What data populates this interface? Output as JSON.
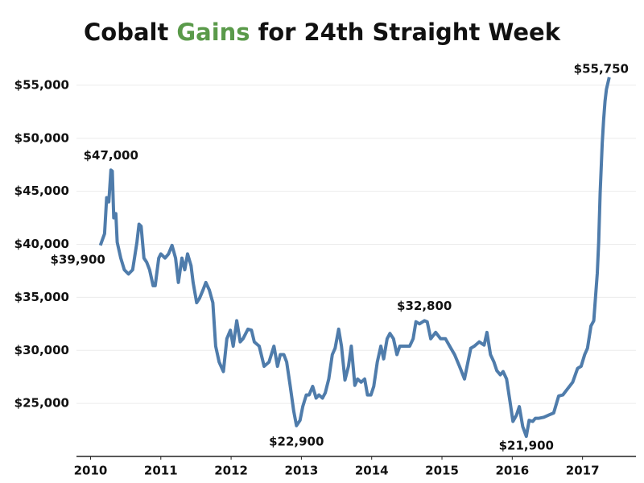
{
  "chart_data": {
    "type": "line",
    "title": [
      "Cobalt",
      "Gains",
      "for 24th Straight Week"
    ],
    "x": [
      2010.14,
      2010.2,
      2010.23,
      2010.26,
      2010.29,
      2010.31,
      2010.33,
      2010.36,
      2010.38,
      2010.43,
      2010.48,
      2010.54,
      2010.6,
      2010.66,
      2010.69,
      2010.72,
      2010.76,
      2010.8,
      2010.84,
      2010.89,
      2010.92,
      2010.97,
      2011.0,
      2011.06,
      2011.11,
      2011.16,
      2011.21,
      2011.25,
      2011.3,
      2011.34,
      2011.38,
      2011.43,
      2011.46,
      2011.51,
      2011.55,
      2011.6,
      2011.64,
      2011.69,
      2011.74,
      2011.78,
      2011.83,
      2011.89,
      2011.94,
      2011.99,
      2012.03,
      2012.08,
      2012.13,
      2012.17,
      2012.24,
      2012.29,
      2012.33,
      2012.4,
      2012.47,
      2012.54,
      2012.61,
      2012.66,
      2012.7,
      2012.75,
      2012.79,
      2012.84,
      2012.89,
      2012.93,
      2012.98,
      2013.02,
      2013.07,
      2013.11,
      2013.16,
      2013.21,
      2013.25,
      2013.3,
      2013.34,
      2013.39,
      2013.44,
      2013.48,
      2013.53,
      2013.57,
      2013.62,
      2013.67,
      2013.71,
      2013.76,
      2013.8,
      2013.85,
      2013.9,
      2013.94,
      2013.99,
      2014.03,
      2014.08,
      2014.13,
      2014.17,
      2014.22,
      2014.26,
      2014.31,
      2014.36,
      2014.4,
      2014.47,
      2014.54,
      2014.59,
      2014.63,
      2014.68,
      2014.75,
      2014.79,
      2014.84,
      2014.91,
      2014.98,
      2015.05,
      2015.11,
      2015.18,
      2015.25,
      2015.32,
      2015.37,
      2015.41,
      2015.46,
      2015.53,
      2015.6,
      2015.64,
      2015.69,
      2015.74,
      2015.78,
      2015.83,
      2015.87,
      2015.92,
      2015.97,
      2016.01,
      2016.06,
      2016.1,
      2016.15,
      2016.2,
      2016.24,
      2016.29,
      2016.33,
      2016.38,
      2016.45,
      2016.52,
      2016.59,
      2016.66,
      2016.72,
      2016.79,
      2016.86,
      2016.93,
      2016.98,
      2017.03,
      2017.07,
      2017.12,
      2017.16,
      2017.21,
      2017.23,
      2017.25,
      2017.28,
      2017.3,
      2017.32,
      2017.34,
      2017.38
    ],
    "series": [
      {
        "color": "#4f7cab",
        "values": [
          39900,
          41000,
          44400,
          44000,
          47000,
          46900,
          42500,
          42900,
          40200,
          38700,
          37600,
          37200,
          37600,
          40200,
          41900,
          41700,
          38700,
          38300,
          37600,
          36100,
          36100,
          38700,
          39100,
          38700,
          39100,
          39900,
          38700,
          36400,
          38700,
          37600,
          39100,
          38000,
          36400,
          34500,
          34900,
          35700,
          36400,
          35700,
          34500,
          30400,
          28900,
          28000,
          31100,
          31900,
          30400,
          32800,
          30800,
          31100,
          32000,
          31900,
          30800,
          30400,
          28500,
          28900,
          30400,
          28500,
          29600,
          29600,
          28900,
          26700,
          24300,
          22900,
          23400,
          24700,
          25800,
          25800,
          26600,
          25500,
          25800,
          25500,
          26000,
          27300,
          29600,
          30200,
          32000,
          30400,
          27200,
          28500,
          30400,
          26700,
          27300,
          27000,
          27300,
          25800,
          25800,
          26600,
          28900,
          30400,
          29200,
          31100,
          31600,
          31100,
          29600,
          30400,
          30400,
          30400,
          31100,
          32700,
          32500,
          32800,
          32700,
          31100,
          31700,
          31100,
          31100,
          30400,
          29600,
          28500,
          27300,
          28900,
          30200,
          30400,
          30800,
          30500,
          31700,
          29600,
          28900,
          28100,
          27700,
          28000,
          27300,
          25100,
          23300,
          23900,
          24700,
          22800,
          21900,
          23400,
          23300,
          23600,
          23600,
          23700,
          23900,
          24100,
          25700,
          25800,
          26400,
          27000,
          28300,
          28500,
          29600,
          30200,
          32300,
          32800,
          37300,
          40200,
          44800,
          49500,
          51700,
          53500,
          54600,
          55750
        ]
      }
    ],
    "annotations": [
      {
        "x": 2010.29,
        "y": 47000,
        "label": "$47,000"
      },
      {
        "x": 2010.14,
        "y": 39900,
        "label": "$39,900"
      },
      {
        "x": 2012.93,
        "y": 22900,
        "label": "$22,900"
      },
      {
        "x": 2014.75,
        "y": 32800,
        "label": "$32,800"
      },
      {
        "x": 2016.2,
        "y": 21900,
        "label": "$21,900"
      },
      {
        "x": 2017.38,
        "y": 55750,
        "label": "$55,750"
      }
    ],
    "xlim": [
      2009.8,
      2017.76
    ],
    "xticks": [
      2010,
      2011,
      2012,
      2013,
      2014,
      2015,
      2016,
      2017
    ],
    "ylim": [
      20000,
      60000
    ],
    "yticks": [
      {
        "value": 25000,
        "label": "$25,000"
      },
      {
        "value": 30000,
        "label": "$30,000"
      },
      {
        "value": 35000,
        "label": "$35,000"
      },
      {
        "value": 40000,
        "label": "$40,000"
      },
      {
        "value": 45000,
        "label": "$45,000"
      },
      {
        "value": 50000,
        "label": "$50,000"
      },
      {
        "value": 55000,
        "label": "$55,000"
      }
    ],
    "grid": true
  }
}
